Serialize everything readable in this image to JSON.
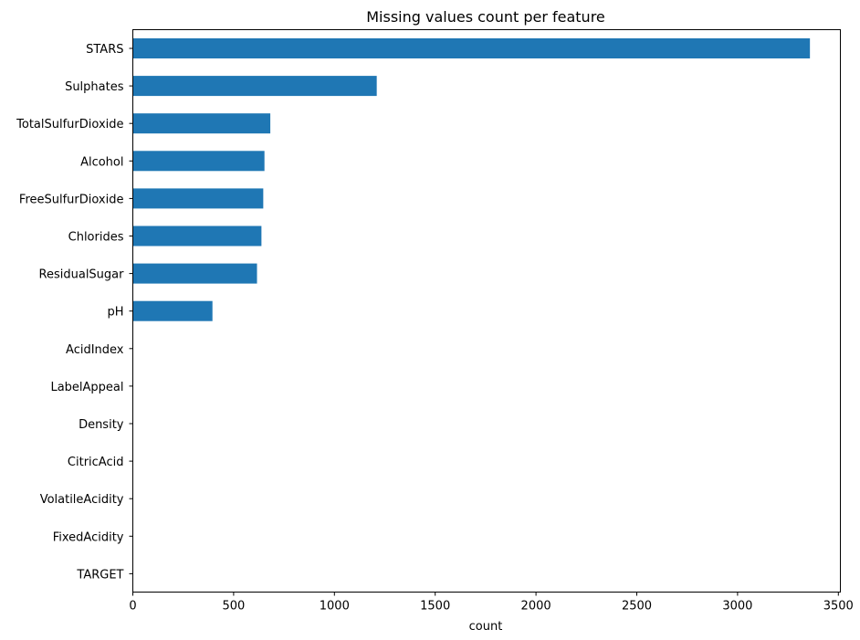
{
  "chart_data": {
    "type": "bar",
    "orientation": "horizontal",
    "title": "Missing values count per feature",
    "xlabel": "count",
    "ylabel": "",
    "xlim": [
      0,
      3510
    ],
    "x_ticks": [
      0,
      500,
      1000,
      1500,
      2000,
      2500,
      3000,
      3500
    ],
    "grid": false,
    "legend": "none",
    "bar_color": "#1f77b4",
    "categories": [
      "STARS",
      "Sulphates",
      "TotalSulfurDioxide",
      "Alcohol",
      "FreeSulfurDioxide",
      "Chlorides",
      "ResidualSugar",
      "pH",
      "AcidIndex",
      "LabelAppeal",
      "Density",
      "CitricAcid",
      "VolatileAcidity",
      "FixedAcidity",
      "TARGET"
    ],
    "values": [
      3359,
      1210,
      682,
      653,
      647,
      638,
      616,
      395,
      0,
      0,
      0,
      0,
      0,
      0,
      0
    ]
  }
}
